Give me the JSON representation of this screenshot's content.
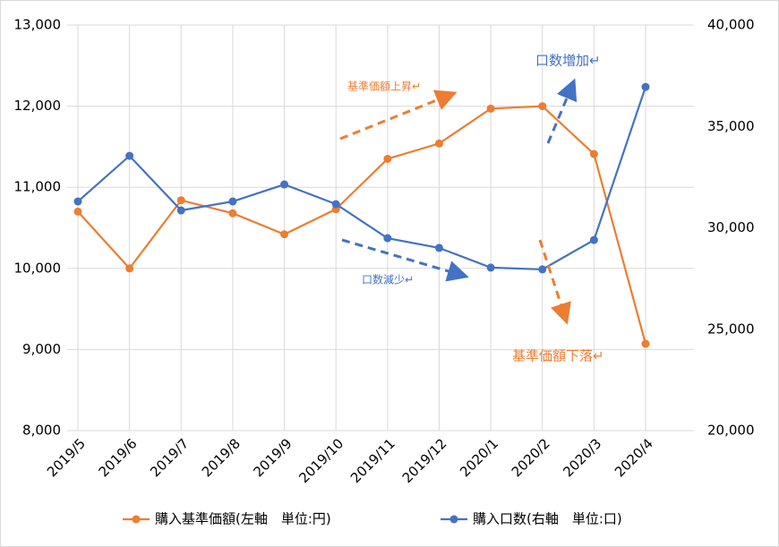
{
  "chart_data": {
    "type": "line",
    "categories": [
      "2019/5",
      "2019/6",
      "2019/7",
      "2019/8",
      "2019/9",
      "2019/10",
      "2019/11",
      "2019/12",
      "2020/1",
      "2020/2",
      "2020/3",
      "2020/4"
    ],
    "series": [
      {
        "name": "購入基準価額(左軸　単位:円)",
        "color": "#ed7d31",
        "axis": "y",
        "values": [
          10700,
          10000,
          10840,
          10680,
          10420,
          10730,
          11350,
          11540,
          11970,
          12000,
          11410,
          9070
        ]
      },
      {
        "name": "購入口数(右軸　単位:口)",
        "color": "#4472c4",
        "axis": "y2",
        "values": [
          31300,
          33550,
          30860,
          31300,
          32140,
          31170,
          29490,
          29010,
          28040,
          27950,
          29400,
          36950
        ]
      }
    ],
    "ylim": [
      8000,
      13000
    ],
    "yticks": [
      {
        "value": 8000,
        "label": "8,000"
      },
      {
        "value": 9000,
        "label": "9,000"
      },
      {
        "value": 10000,
        "label": "10,000"
      },
      {
        "value": 11000,
        "label": "11,000"
      },
      {
        "value": 12000,
        "label": "12,000"
      },
      {
        "value": 13000,
        "label": "13,000"
      }
    ],
    "y2lim": [
      20000,
      40000
    ],
    "y2ticks": [
      {
        "value": 20000,
        "label": "20,000"
      },
      {
        "value": 25000,
        "label": "25,000"
      },
      {
        "value": 30000,
        "label": "30,000"
      },
      {
        "value": 35000,
        "label": "35,000"
      },
      {
        "value": 40000,
        "label": "40,000"
      }
    ],
    "grid": true,
    "legend": "bottom",
    "annotations": [
      "基準価額上昇↵",
      "口数増加↵",
      "口数減少↵",
      "基準価額下落↵"
    ]
  }
}
